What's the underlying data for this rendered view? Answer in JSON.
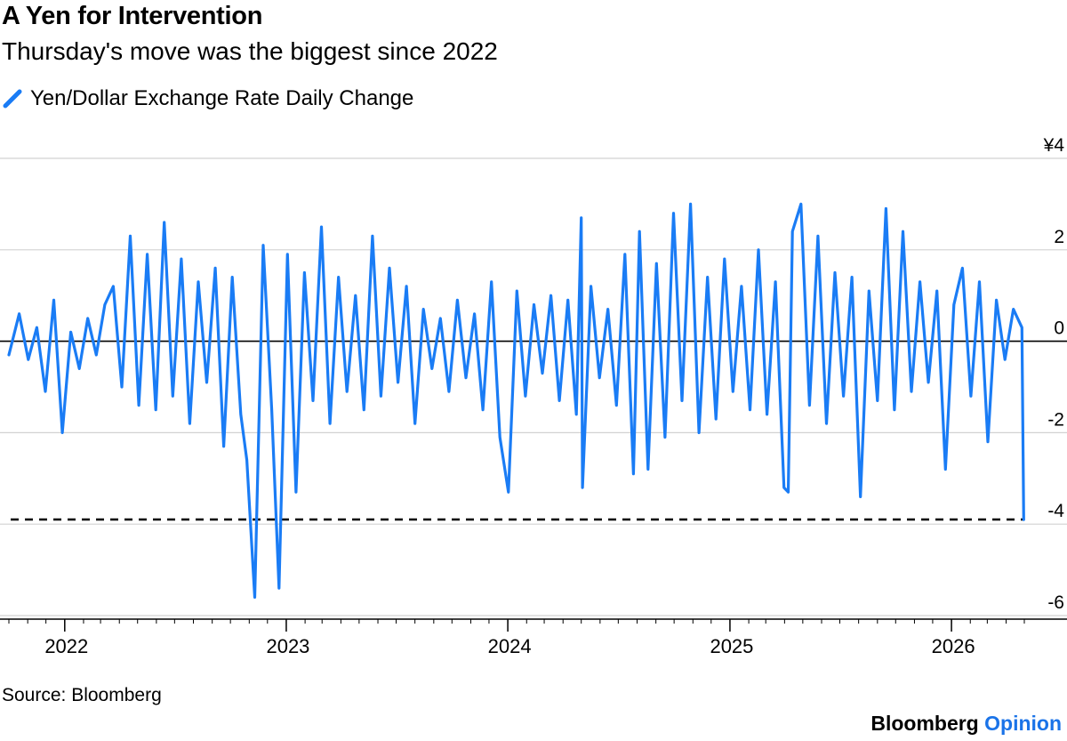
{
  "header": {
    "title": "A Yen for Intervention",
    "subtitle": "Thursday's move was the biggest since 2022"
  },
  "legend": {
    "label": "Yen/Dollar Exchange Rate Daily Change",
    "icon": "line-swatch-icon"
  },
  "footer": {
    "source": "Source: Bloomberg",
    "brand_main": "Bloomberg",
    "brand_accent": "Opinion"
  },
  "colors": {
    "series": "#1a7cf5",
    "grid": "#d2d2d2",
    "zero_line": "#000000",
    "reference_line": "#000000",
    "brand_accent": "#1a73e8"
  },
  "chart_data": {
    "type": "line",
    "title": "A Yen for Intervention",
    "subtitle": "Thursday's move was the biggest since 2022",
    "series_name": "Yen/Dollar Exchange Rate Daily Change",
    "y_ticks": [
      {
        "value": 4,
        "label": "¥4"
      },
      {
        "value": 2,
        "label": "2"
      },
      {
        "value": 0,
        "label": "0"
      },
      {
        "value": -2,
        "label": "-2"
      },
      {
        "value": -4,
        "label": "-4"
      },
      {
        "value": -6,
        "label": "-6"
      }
    ],
    "ylim": [
      -6,
      4
    ],
    "x_range": [
      "2021-10-01",
      "2026-05-01"
    ],
    "x_ticks": [
      {
        "date": "2022-01-01",
        "label": "2022"
      },
      {
        "date": "2023-01-01",
        "label": "2023"
      },
      {
        "date": "2024-01-01",
        "label": "2024"
      },
      {
        "date": "2025-01-01",
        "label": "2025"
      },
      {
        "date": "2026-01-01",
        "label": "2026"
      }
    ],
    "reference_line": {
      "value": -3.9,
      "style": "dashed"
    },
    "grid": true,
    "legend_position": "top-left",
    "series": [
      {
        "values_note": "approximate daily changes (yen)",
        "points": [
          [
            "2021-10-01",
            -0.3
          ],
          [
            "2021-10-18",
            0.6
          ],
          [
            "2021-11-02",
            -0.4
          ],
          [
            "2021-11-16",
            0.3
          ],
          [
            "2021-11-30",
            -1.1
          ],
          [
            "2021-12-14",
            0.9
          ],
          [
            "2021-12-28",
            -2.0
          ],
          [
            "2022-01-11",
            0.2
          ],
          [
            "2022-01-25",
            -0.6
          ],
          [
            "2022-02-08",
            0.5
          ],
          [
            "2022-02-22",
            -0.3
          ],
          [
            "2022-03-08",
            0.8
          ],
          [
            "2022-03-22",
            1.2
          ],
          [
            "2022-04-05",
            -1.0
          ],
          [
            "2022-04-19",
            2.3
          ],
          [
            "2022-05-03",
            -1.4
          ],
          [
            "2022-05-17",
            1.9
          ],
          [
            "2022-05-31",
            -1.5
          ],
          [
            "2022-06-14",
            2.6
          ],
          [
            "2022-06-28",
            -1.2
          ],
          [
            "2022-07-12",
            1.8
          ],
          [
            "2022-07-26",
            -1.8
          ],
          [
            "2022-08-09",
            1.3
          ],
          [
            "2022-08-23",
            -0.9
          ],
          [
            "2022-09-06",
            1.6
          ],
          [
            "2022-09-20",
            -2.3
          ],
          [
            "2022-10-04",
            1.4
          ],
          [
            "2022-10-18",
            -1.6
          ],
          [
            "2022-10-28",
            -2.6
          ],
          [
            "2022-11-10",
            -5.6
          ],
          [
            "2022-11-24",
            2.1
          ],
          [
            "2022-12-08",
            -1.5
          ],
          [
            "2022-12-20",
            -5.4
          ],
          [
            "2023-01-03",
            1.9
          ],
          [
            "2023-01-17",
            -3.3
          ],
          [
            "2023-01-31",
            1.5
          ],
          [
            "2023-02-14",
            -1.3
          ],
          [
            "2023-02-28",
            2.5
          ],
          [
            "2023-03-14",
            -1.8
          ],
          [
            "2023-03-28",
            1.4
          ],
          [
            "2023-04-11",
            -1.1
          ],
          [
            "2023-04-25",
            1.0
          ],
          [
            "2023-05-09",
            -1.5
          ],
          [
            "2023-05-23",
            2.3
          ],
          [
            "2023-06-06",
            -1.2
          ],
          [
            "2023-06-20",
            1.6
          ],
          [
            "2023-07-04",
            -0.9
          ],
          [
            "2023-07-18",
            1.2
          ],
          [
            "2023-08-01",
            -1.8
          ],
          [
            "2023-08-15",
            0.7
          ],
          [
            "2023-08-29",
            -0.6
          ],
          [
            "2023-09-12",
            0.5
          ],
          [
            "2023-09-26",
            -1.1
          ],
          [
            "2023-10-10",
            0.9
          ],
          [
            "2023-10-24",
            -0.8
          ],
          [
            "2023-11-07",
            0.6
          ],
          [
            "2023-11-21",
            -1.5
          ],
          [
            "2023-12-05",
            1.3
          ],
          [
            "2023-12-19",
            -2.1
          ],
          [
            "2024-01-02",
            -3.3
          ],
          [
            "2024-01-16",
            1.1
          ],
          [
            "2024-01-30",
            -1.2
          ],
          [
            "2024-02-13",
            0.8
          ],
          [
            "2024-02-27",
            -0.7
          ],
          [
            "2024-03-12",
            1.0
          ],
          [
            "2024-03-26",
            -1.3
          ],
          [
            "2024-04-09",
            0.9
          ],
          [
            "2024-04-23",
            -1.6
          ],
          [
            "2024-05-01",
            2.7
          ],
          [
            "2024-05-03",
            -3.2
          ],
          [
            "2024-05-17",
            1.2
          ],
          [
            "2024-05-31",
            -0.8
          ],
          [
            "2024-06-14",
            0.7
          ],
          [
            "2024-06-28",
            -1.4
          ],
          [
            "2024-07-12",
            1.9
          ],
          [
            "2024-07-26",
            -2.9
          ],
          [
            "2024-08-05",
            2.4
          ],
          [
            "2024-08-19",
            -2.8
          ],
          [
            "2024-09-02",
            1.7
          ],
          [
            "2024-09-16",
            -2.1
          ],
          [
            "2024-09-30",
            2.8
          ],
          [
            "2024-10-14",
            -1.3
          ],
          [
            "2024-10-28",
            3.0
          ],
          [
            "2024-11-11",
            -2.0
          ],
          [
            "2024-11-25",
            1.4
          ],
          [
            "2024-12-09",
            -1.7
          ],
          [
            "2024-12-23",
            1.8
          ],
          [
            "2025-01-06",
            -1.1
          ],
          [
            "2025-01-20",
            1.2
          ],
          [
            "2025-02-03",
            -1.5
          ],
          [
            "2025-02-17",
            2.0
          ],
          [
            "2025-03-03",
            -1.6
          ],
          [
            "2025-03-17",
            1.3
          ],
          [
            "2025-03-31",
            -3.2
          ],
          [
            "2025-04-07",
            -3.3
          ],
          [
            "2025-04-14",
            2.4
          ],
          [
            "2025-04-28",
            3.0
          ],
          [
            "2025-05-12",
            -1.4
          ],
          [
            "2025-05-26",
            2.3
          ],
          [
            "2025-06-09",
            -1.8
          ],
          [
            "2025-06-23",
            1.5
          ],
          [
            "2025-07-07",
            -1.2
          ],
          [
            "2025-07-21",
            1.4
          ],
          [
            "2025-08-04",
            -3.4
          ],
          [
            "2025-08-18",
            1.1
          ],
          [
            "2025-09-01",
            -1.3
          ],
          [
            "2025-09-15",
            2.9
          ],
          [
            "2025-09-29",
            -1.5
          ],
          [
            "2025-10-13",
            2.4
          ],
          [
            "2025-10-27",
            -1.1
          ],
          [
            "2025-11-10",
            1.3
          ],
          [
            "2025-11-24",
            -0.9
          ],
          [
            "2025-12-08",
            1.1
          ],
          [
            "2025-12-22",
            -2.8
          ],
          [
            "2026-01-05",
            0.8
          ],
          [
            "2026-01-19",
            1.6
          ],
          [
            "2026-02-02",
            -1.2
          ],
          [
            "2026-02-16",
            1.3
          ],
          [
            "2026-03-02",
            -2.2
          ],
          [
            "2026-03-16",
            0.9
          ],
          [
            "2026-03-30",
            -0.4
          ],
          [
            "2026-04-13",
            0.7
          ],
          [
            "2026-04-27",
            0.3
          ],
          [
            "2026-04-30",
            -3.9
          ]
        ]
      }
    ]
  }
}
